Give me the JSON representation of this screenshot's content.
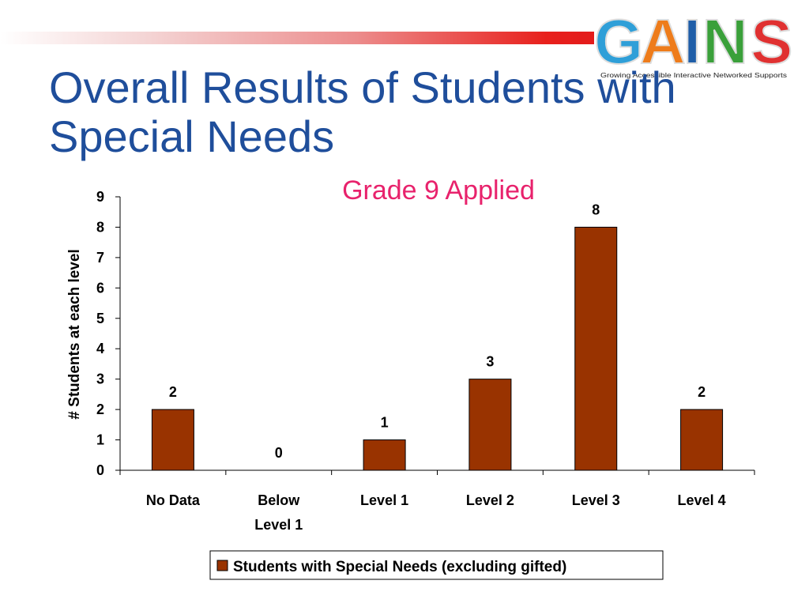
{
  "slide": {
    "title_line1": "Overall Results of Students with",
    "title_line2": "Special Needs"
  },
  "logo": {
    "text": "GAINS",
    "tagline": "Growing Accessible Interactive Networked Supports",
    "letter_colors": [
      "#2f9fd8",
      "#ee7c1b",
      "#1f5ea8",
      "#3aa03a",
      "#e03131"
    ]
  },
  "chart_data": {
    "type": "bar",
    "title": "Grade 9 Applied",
    "ylabel": "# Students at each level",
    "xlabel": "",
    "categories": [
      [
        "No Data"
      ],
      [
        "Below",
        "Level 1"
      ],
      [
        "Level 1"
      ],
      [
        "Level 2"
      ],
      [
        "Level 3"
      ],
      [
        "Level 4"
      ]
    ],
    "series": [
      {
        "name": "Students with Special Needs (excluding gifted)",
        "values": [
          2,
          0,
          1,
          3,
          8,
          2
        ],
        "color": "#993300"
      }
    ],
    "ylim": [
      0,
      9
    ],
    "yticks": [
      "0",
      "1",
      "2",
      "3",
      "4",
      "5",
      "6",
      "7",
      "8",
      "9"
    ],
    "grid": false,
    "legend_position": "bottom"
  }
}
